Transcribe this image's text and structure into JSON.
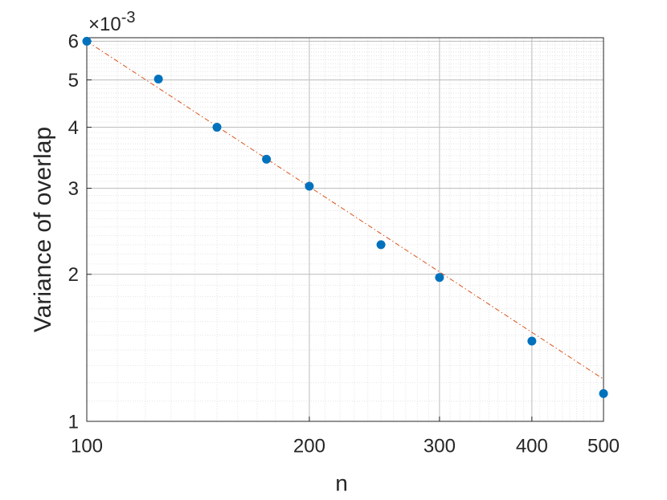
{
  "chart_data": {
    "type": "scatter",
    "xlabel": "n",
    "ylabel": "Variance of overlap",
    "y_multiplier": "×10",
    "y_multiplier_exponent": "-3",
    "xscale": "log",
    "yscale": "log",
    "xlim": [
      100,
      500
    ],
    "ylim": [
      1,
      6.1
    ],
    "xticks": [
      100,
      200,
      300,
      400,
      500
    ],
    "yticks": [
      1,
      2,
      3,
      4,
      5,
      6
    ],
    "grid": true,
    "minor_grid": true,
    "series": [
      {
        "type": "scatter",
        "color": "#0072bd",
        "x": [
          100,
          125,
          150,
          175,
          200,
          250,
          300,
          400,
          500
        ],
        "values": [
          6.0,
          5.02,
          4.0,
          3.44,
          3.03,
          2.3,
          1.97,
          1.46,
          1.14
        ]
      },
      {
        "type": "line",
        "color": "#d95319",
        "x": [
          100,
          500
        ],
        "values": [
          6.0,
          1.22
        ]
      }
    ]
  }
}
